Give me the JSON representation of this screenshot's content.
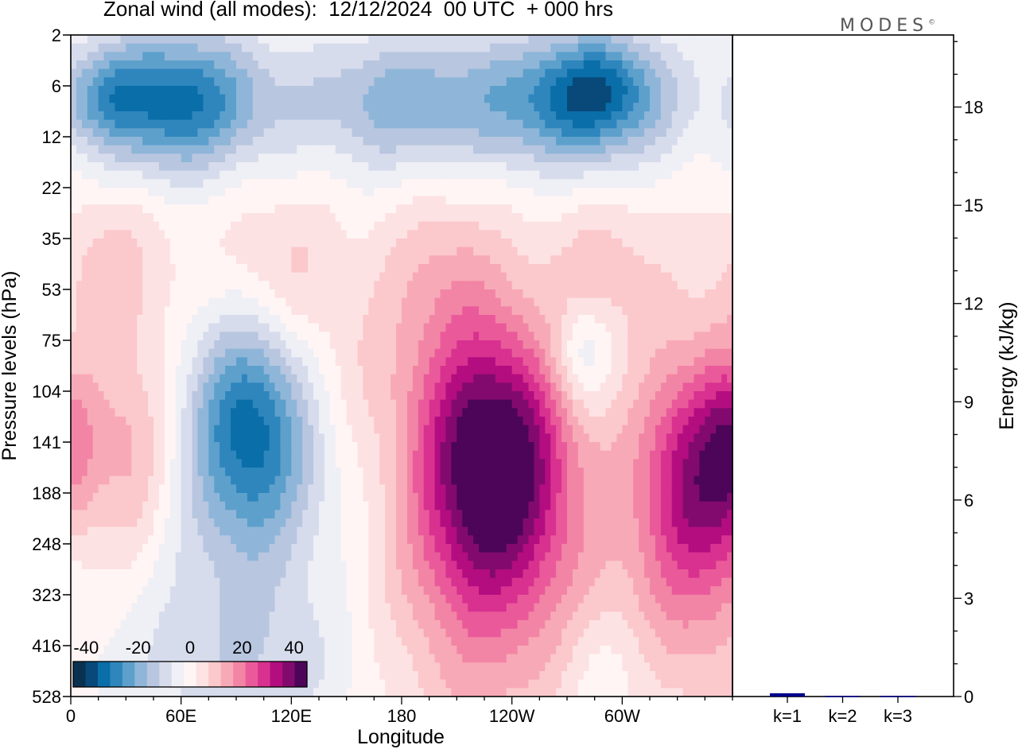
{
  "title": "Zonal wind (all modes):  12/12/2024  00 UTC  + 000 hrs",
  "brand": "MODES",
  "brand_mark": "©",
  "chart_data": [
    {
      "type": "heatmap",
      "title": "Zonal wind (all modes):  12/12/2024  00 UTC  + 000 hrs",
      "xlabel": "Longitude",
      "ylabel": "Pressure levels (hPa)",
      "x_ticks": [
        "0",
        "60E",
        "120E",
        "180",
        "120W",
        "60W"
      ],
      "x_tick_values": [
        0,
        60,
        120,
        180,
        240,
        300
      ],
      "xlim": [
        0,
        360
      ],
      "y_ticks": [
        "2",
        "6",
        "12",
        "22",
        "35",
        "53",
        "75",
        "104",
        "141",
        "188",
        "248",
        "323",
        "416",
        "528"
      ],
      "y_scale": "log",
      "colorbar": {
        "labels": [
          "-40",
          "-20",
          "0",
          "20",
          "40"
        ],
        "label_values": [
          -40,
          -20,
          0,
          20,
          40
        ],
        "range": [
          -45,
          45
        ],
        "colors": [
          "#0a3050",
          "#08497a",
          "#0a6ea8",
          "#2e86bd",
          "#5ea0cc",
          "#8fb6d8",
          "#b8c6e0",
          "#d7dcec",
          "#efeff6",
          "#fff5f4",
          "#fde2e3",
          "#fbc8cc",
          "#f8a9b7",
          "#f285a5",
          "#ea5a9a",
          "#d8318f",
          "#b30d80",
          "#820a6f",
          "#4c0558"
        ]
      },
      "features": [
        {
          "name": "stratospheric easterly band",
          "lon_range": [
            0,
            360
          ],
          "p_range": [
            3,
            15
          ],
          "value": -30
        },
        {
          "name": "easterly jet core",
          "lon": 290,
          "p": 6,
          "value": -40
        },
        {
          "name": "upper westerlies",
          "lon_range": [
            0,
            360
          ],
          "p_range": [
            22,
            60
          ],
          "value": 6
        },
        {
          "name": "easterly core",
          "lon": 105,
          "p": 120,
          "value": -26
        },
        {
          "name": "weak easterly",
          "lon": 280,
          "p": 85,
          "value": -12
        },
        {
          "name": "westerly jet core",
          "lon": 230,
          "p": 141,
          "value": 42
        },
        {
          "name": "westerly jet",
          "lon": 340,
          "p": 145,
          "value": 30
        },
        {
          "name": "westerly",
          "lon": 32,
          "p": 150,
          "value": 14
        }
      ]
    },
    {
      "type": "bar",
      "ylabel": "Energy (kJ/kg)",
      "categories": [
        "k=1",
        "k=2",
        "k=3"
      ],
      "values": [
        0.1,
        0.02,
        0.02
      ],
      "ylim": [
        0,
        20.2
      ],
      "y_ticks": [
        "0",
        "3",
        "6",
        "9",
        "12",
        "15",
        "18"
      ],
      "y_tick_values": [
        0,
        3,
        6,
        9,
        12,
        15,
        18
      ],
      "bar_color": "#00008b",
      "grid": false
    }
  ]
}
